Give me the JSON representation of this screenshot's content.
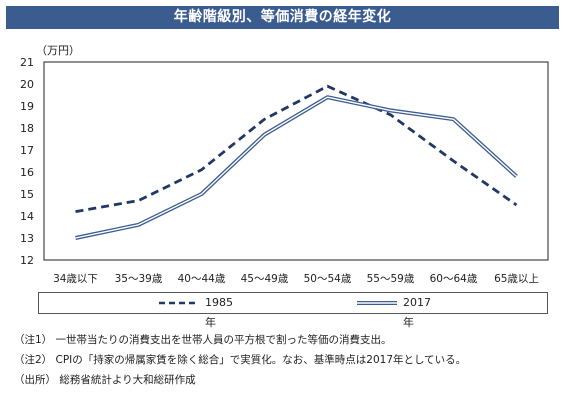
{
  "header": {
    "title": "年齢階級別、等価消費の経年変化"
  },
  "chart_data": {
    "type": "line",
    "ylabel": "（万円）",
    "ylim": [
      12,
      21
    ],
    "yticks": [
      12,
      13,
      14,
      15,
      16,
      17,
      18,
      19,
      20,
      21
    ],
    "categories": [
      "34歳以下",
      "35～39歳",
      "40～44歳",
      "45～49歳",
      "50～54歳",
      "55～59歳",
      "60～64歳",
      "65歳以上"
    ],
    "series": [
      {
        "name": "1985年",
        "values": [
          14.2,
          14.7,
          16.1,
          18.4,
          19.9,
          18.6,
          16.5,
          14.5
        ],
        "color": "#1f3864",
        "style": "dashed"
      },
      {
        "name": "2017年",
        "values": [
          13.0,
          13.6,
          15.0,
          17.7,
          19.4,
          18.8,
          18.4,
          15.8
        ],
        "color": "#3b5c8e",
        "style": "double"
      }
    ],
    "grid": false,
    "legend_position": "bottom"
  },
  "notes": [
    "（注1） 一世帯当たりの消費支出を世帯人員の平方根で割った等価の消費支出。",
    "（注2） CPIの「持家の帰属家賃を除く総合」で実質化。なお、基準時点は2017年としている。",
    "（出所） 総務省統計より大和総研作成"
  ]
}
